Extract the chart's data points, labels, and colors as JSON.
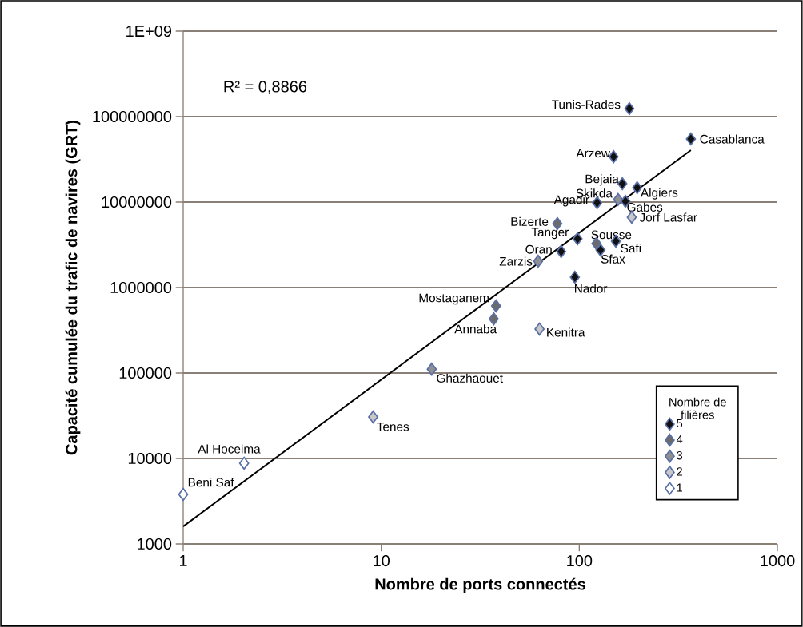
{
  "chart_data": {
    "type": "scatter",
    "xlabel": "Nombre de ports connectés",
    "ylabel": "Capacité cumulée du trafic de navires (GRT)",
    "legend_title": "Nombre de filières",
    "log": "xy",
    "grid": "y",
    "legend": "bottom right",
    "marker": "diamond",
    "xlim": [
      1,
      1000
    ],
    "ylim": [
      1000,
      1000000000
    ],
    "xticks": [
      1,
      10,
      100,
      1000
    ],
    "yticks": [
      1000,
      10000,
      100000,
      1000000,
      10000000,
      100000000,
      {
        "value": 1000000000,
        "label": "1E+09"
      }
    ],
    "series": [
      {
        "name": "5",
        "color": "#111111",
        "x": [
          179,
          366,
          149,
          165,
          196,
          171,
          123,
          98,
          153,
          128,
          81,
          95
        ],
        "values": [
          124000000,
          54700000,
          34000000,
          16400000,
          14700000,
          10200000,
          9800000,
          3720000,
          3480000,
          2750000,
          2640000,
          1320000
        ]
      },
      {
        "name": "4",
        "color": "#6b6b6b",
        "x": [
          77.5,
          122,
          38,
          37
        ],
        "values": [
          5600000,
          3270000,
          610000,
          430000
        ]
      },
      {
        "name": "3",
        "color": "#909090",
        "x": [
          157,
          62,
          18
        ],
        "values": [
          10700000,
          2030000,
          111000
        ]
      },
      {
        "name": "2",
        "color": "#c8c8c8",
        "x": [
          184,
          63,
          9.1
        ],
        "values": [
          6640000,
          327000,
          30600
        ]
      },
      {
        "name": "1",
        "color": "#ffffff",
        "x": [
          1,
          2.03
        ],
        "values": [
          3800,
          8800
        ]
      },
      {
        "type": "line",
        "color": "#000000",
        "marker": "none",
        "x": [
          1,
          366
        ],
        "values": [
          1600,
          40500000
        ]
      }
    ],
    "annotations": [
      "R² = 0,8866",
      {
        "text": "Tunis-Rades",
        "x": 179,
        "y": 124000000
      },
      {
        "text": "Casablanca",
        "x": 366,
        "y": 54700000
      },
      {
        "text": "Arzew",
        "x": 149,
        "y": 34000000
      },
      {
        "text": "Bejaia",
        "x": 165,
        "y": 16400000
      },
      {
        "text": "Skikda",
        "x": 157,
        "y": 10700000
      },
      {
        "text": "Algiers",
        "x": 196,
        "y": 14700000
      },
      {
        "text": "Agadir",
        "x": 123,
        "y": 9800000
      },
      {
        "text": "Gabes",
        "x": 171,
        "y": 10200000
      },
      {
        "text": "Jorf Lasfar",
        "x": 184,
        "y": 6640000
      },
      {
        "text": "Bizerte",
        "x": 77.5,
        "y": 5600000
      },
      {
        "text": "Sousse",
        "x": 122,
        "y": 3270000
      },
      {
        "text": "Tanger",
        "x": 98,
        "y": 3720000
      },
      {
        "text": "Oran",
        "x": 81,
        "y": 2640000
      },
      {
        "text": "Safi",
        "x": 153,
        "y": 3480000
      },
      {
        "text": "Sfax",
        "x": 128,
        "y": 2750000
      },
      {
        "text": "Zarzis",
        "x": 62,
        "y": 2030000
      },
      {
        "text": "Nador",
        "x": 95,
        "y": 1320000
      },
      {
        "text": "Mostaganem",
        "x": 38,
        "y": 610000
      },
      {
        "text": "Annaba",
        "x": 37,
        "y": 430000
      },
      {
        "text": "Kenitra",
        "x": 63,
        "y": 327000
      },
      {
        "text": "Ghazhaouet",
        "x": 18,
        "y": 111000
      },
      {
        "text": "Tenes",
        "x": 9.1,
        "y": 30600
      },
      {
        "text": "Al Hoceima",
        "x": 2.03,
        "y": 8800
      },
      {
        "text": "Beni Saf",
        "x": 1,
        "y": 3800
      }
    ]
  }
}
